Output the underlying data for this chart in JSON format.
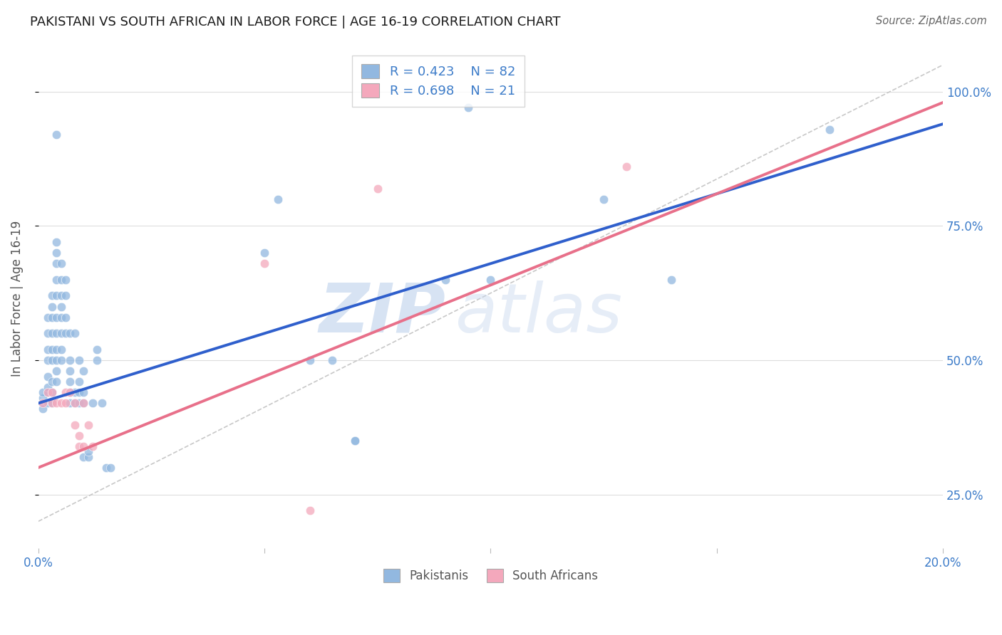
{
  "title": "PAKISTANI VS SOUTH AFRICAN IN LABOR FORCE | AGE 16-19 CORRELATION CHART",
  "source": "Source: ZipAtlas.com",
  "ylabel": "In Labor Force | Age 16-19",
  "xlim": [
    0.0,
    0.2
  ],
  "ylim": [
    0.15,
    1.08
  ],
  "ytick_positions": [
    0.25,
    0.5,
    0.75,
    1.0
  ],
  "ytick_labels": [
    "25.0%",
    "50.0%",
    "75.0%",
    "100.0%"
  ],
  "xtick_positions": [
    0.0,
    0.05,
    0.1,
    0.15,
    0.2
  ],
  "xtick_labels": [
    "0.0%",
    "",
    "",
    "",
    "20.0%"
  ],
  "blue_scatter": [
    [
      0.001,
      0.42
    ],
    [
      0.001,
      0.41
    ],
    [
      0.001,
      0.43
    ],
    [
      0.001,
      0.44
    ],
    [
      0.002,
      0.42
    ],
    [
      0.002,
      0.44
    ],
    [
      0.002,
      0.45
    ],
    [
      0.002,
      0.47
    ],
    [
      0.002,
      0.5
    ],
    [
      0.002,
      0.52
    ],
    [
      0.002,
      0.55
    ],
    [
      0.002,
      0.58
    ],
    [
      0.003,
      0.42
    ],
    [
      0.003,
      0.44
    ],
    [
      0.003,
      0.46
    ],
    [
      0.003,
      0.5
    ],
    [
      0.003,
      0.52
    ],
    [
      0.003,
      0.55
    ],
    [
      0.003,
      0.58
    ],
    [
      0.003,
      0.6
    ],
    [
      0.003,
      0.62
    ],
    [
      0.004,
      0.46
    ],
    [
      0.004,
      0.48
    ],
    [
      0.004,
      0.5
    ],
    [
      0.004,
      0.52
    ],
    [
      0.004,
      0.55
    ],
    [
      0.004,
      0.58
    ],
    [
      0.004,
      0.62
    ],
    [
      0.004,
      0.65
    ],
    [
      0.004,
      0.68
    ],
    [
      0.004,
      0.7
    ],
    [
      0.004,
      0.72
    ],
    [
      0.005,
      0.5
    ],
    [
      0.005,
      0.52
    ],
    [
      0.005,
      0.55
    ],
    [
      0.005,
      0.58
    ],
    [
      0.005,
      0.6
    ],
    [
      0.005,
      0.62
    ],
    [
      0.005,
      0.65
    ],
    [
      0.005,
      0.68
    ],
    [
      0.006,
      0.55
    ],
    [
      0.006,
      0.58
    ],
    [
      0.006,
      0.62
    ],
    [
      0.006,
      0.65
    ],
    [
      0.007,
      0.42
    ],
    [
      0.007,
      0.44
    ],
    [
      0.007,
      0.46
    ],
    [
      0.007,
      0.48
    ],
    [
      0.007,
      0.5
    ],
    [
      0.007,
      0.55
    ],
    [
      0.008,
      0.42
    ],
    [
      0.008,
      0.44
    ],
    [
      0.008,
      0.55
    ],
    [
      0.009,
      0.42
    ],
    [
      0.009,
      0.44
    ],
    [
      0.009,
      0.46
    ],
    [
      0.009,
      0.5
    ],
    [
      0.01,
      0.42
    ],
    [
      0.01,
      0.44
    ],
    [
      0.01,
      0.48
    ],
    [
      0.01,
      0.32
    ],
    [
      0.011,
      0.32
    ],
    [
      0.011,
      0.33
    ],
    [
      0.012,
      0.42
    ],
    [
      0.013,
      0.5
    ],
    [
      0.013,
      0.52
    ],
    [
      0.014,
      0.42
    ],
    [
      0.015,
      0.3
    ],
    [
      0.016,
      0.3
    ],
    [
      0.05,
      0.7
    ],
    [
      0.053,
      0.8
    ],
    [
      0.09,
      0.65
    ],
    [
      0.095,
      0.97
    ],
    [
      0.1,
      0.65
    ],
    [
      0.125,
      0.8
    ],
    [
      0.06,
      0.5
    ],
    [
      0.065,
      0.5
    ],
    [
      0.004,
      0.92
    ],
    [
      0.07,
      0.35
    ],
    [
      0.07,
      0.35
    ],
    [
      0.14,
      0.65
    ],
    [
      0.175,
      0.93
    ]
  ],
  "pink_scatter": [
    [
      0.001,
      0.42
    ],
    [
      0.002,
      0.44
    ],
    [
      0.003,
      0.42
    ],
    [
      0.003,
      0.44
    ],
    [
      0.004,
      0.42
    ],
    [
      0.005,
      0.42
    ],
    [
      0.006,
      0.44
    ],
    [
      0.006,
      0.42
    ],
    [
      0.007,
      0.44
    ],
    [
      0.008,
      0.42
    ],
    [
      0.008,
      0.38
    ],
    [
      0.009,
      0.36
    ],
    [
      0.009,
      0.34
    ],
    [
      0.01,
      0.34
    ],
    [
      0.01,
      0.42
    ],
    [
      0.011,
      0.38
    ],
    [
      0.012,
      0.34
    ],
    [
      0.05,
      0.68
    ],
    [
      0.06,
      0.22
    ],
    [
      0.075,
      0.82
    ],
    [
      0.13,
      0.86
    ]
  ],
  "blue_line_x": [
    0.0,
    0.2
  ],
  "blue_line_y": [
    0.42,
    0.94
  ],
  "pink_line_x": [
    0.0,
    0.2
  ],
  "pink_line_y": [
    0.3,
    0.98
  ],
  "ref_line_x": [
    0.0,
    0.2
  ],
  "ref_line_y": [
    0.2,
    1.05
  ],
  "blue_color": "#92b8e0",
  "pink_color": "#f4a8bc",
  "blue_line_color": "#2f5fcc",
  "pink_line_color": "#e8708a",
  "ref_line_color": "#c8c8c8",
  "watermark_zip": "ZIP",
  "watermark_atlas": "atlas",
  "legend_blue_r": "0.423",
  "legend_blue_n": "82",
  "legend_pink_r": "0.698",
  "legend_pink_n": "21",
  "bottom_legend_blue": "Pakistanis",
  "bottom_legend_pink": "South Africans",
  "label_color": "#3d7cc9",
  "title_fontsize": 13,
  "source_text_color": "#666666",
  "scatter_size": 80
}
